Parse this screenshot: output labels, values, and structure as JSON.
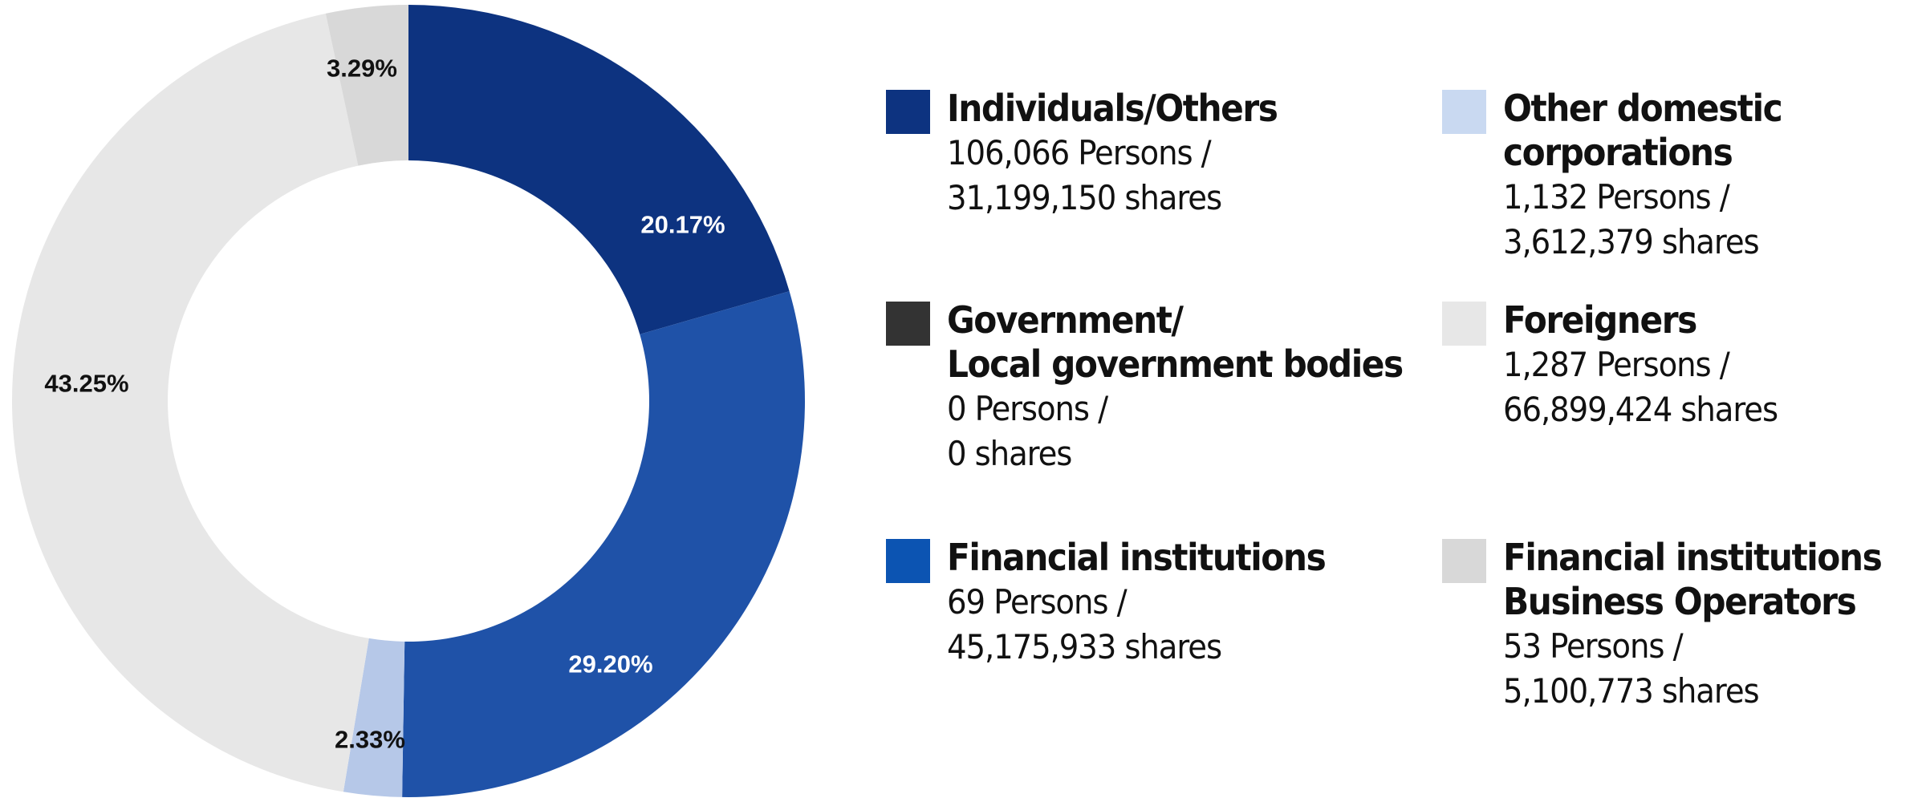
{
  "chart_data": {
    "type": "pie",
    "donut": true,
    "slices": [
      {
        "name": "Individuals/Others",
        "value": 20.17,
        "label": "20.17%",
        "color": "#0d3380",
        "label_color": "#ffffff"
      },
      {
        "name": "Financial institutions",
        "value": 29.2,
        "label": "29.20%",
        "color": "#1f52a8",
        "label_color": "#ffffff"
      },
      {
        "name": "Other domestic corporations",
        "value": 2.33,
        "label": "2.33%",
        "color": "#b6c8e8",
        "label_color": "#111111"
      },
      {
        "name": "Foreigners",
        "value": 43.25,
        "label": "43.25%",
        "color": "#e7e7e7",
        "label_color": "#111111"
      },
      {
        "name": "Financial institutions Business Operators",
        "value": 3.29,
        "label": "3.29%",
        "color": "#d8d8d8",
        "label_color": "#111111"
      },
      {
        "name": "Government/ Local government bodies",
        "value": 0,
        "label": "",
        "color": "#333333",
        "label_color": "#111111"
      }
    ]
  },
  "legend": {
    "items": [
      {
        "name_lines": [
          "Individuals/Others"
        ],
        "detail_lines": [
          "106,066 Persons /",
          "31,199,150 shares"
        ],
        "color": "#0d3380"
      },
      {
        "name_lines": [
          "Government/",
          "Local government bodies"
        ],
        "detail_lines": [
          "0 Persons /",
          "0 shares"
        ],
        "color": "#333333"
      },
      {
        "name_lines": [
          "Financial institutions"
        ],
        "detail_lines": [
          "69 Persons /",
          "45,175,933 shares"
        ],
        "color": "#0c54b2"
      },
      {
        "name_lines": [
          "Other domestic",
          "corporations"
        ],
        "detail_lines": [
          "1,132 Persons /",
          "3,612,379 shares"
        ],
        "color": "#c9d9f1"
      },
      {
        "name_lines": [
          "Foreigners"
        ],
        "detail_lines": [
          "1,287 Persons /",
          "66,899,424 shares"
        ],
        "color": "#e7e7e7"
      },
      {
        "name_lines": [
          "Financial institutions",
          "Business Operators"
        ],
        "detail_lines": [
          "53 Persons /",
          "5,100,773 shares"
        ],
        "color": "#d8d8d8"
      }
    ]
  }
}
